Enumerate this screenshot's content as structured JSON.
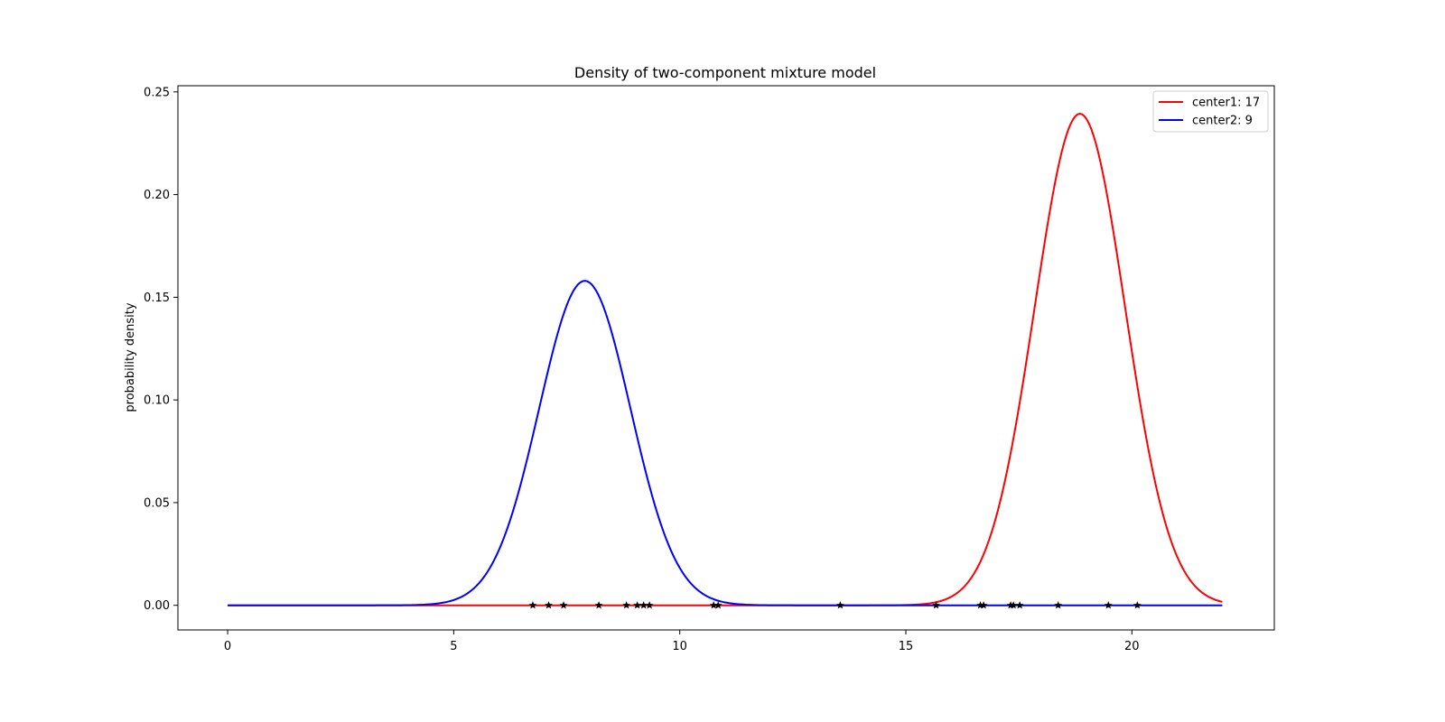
{
  "chart_data": {
    "type": "line",
    "title": "Density of two-component mixture model",
    "xlabel": "",
    "ylabel": "probability density",
    "xlim": [
      -1.1,
      23.15
    ],
    "ylim": [
      -0.012,
      0.253
    ],
    "x_ticks": [
      0,
      5,
      10,
      15,
      20
    ],
    "y_ticks": [
      0.0,
      0.05,
      0.1,
      0.15,
      0.2,
      0.25
    ],
    "x_tick_labels": [
      "0",
      "5",
      "10",
      "15",
      "20"
    ],
    "y_tick_labels": [
      "0.00",
      "0.05",
      "0.10",
      "0.15",
      "0.20",
      "0.25"
    ],
    "grid": false,
    "legend": {
      "location": "top-right"
    },
    "x_range": [
      0,
      22
    ],
    "series": [
      {
        "name": "center1: 17",
        "color": "#ff0000",
        "weight": 0.6,
        "mean": 18.85,
        "sd": 1.0,
        "curve": "gaussian"
      },
      {
        "name": "center2: 9",
        "color": "#0000ff",
        "weight": 0.4,
        "mean": 7.9,
        "sd": 1.01,
        "curve": "gaussian"
      }
    ],
    "data_points": {
      "marker": "star",
      "color": "#000000",
      "x": [
        6.75,
        7.1,
        7.43,
        8.21,
        8.82,
        9.06,
        9.2,
        9.33,
        10.75,
        10.85,
        13.55,
        15.67,
        16.65,
        16.72,
        17.32,
        17.38,
        17.52,
        18.37,
        19.48,
        20.12
      ],
      "y": [
        0,
        0,
        0,
        0,
        0,
        0,
        0,
        0,
        0,
        0,
        0,
        0,
        0,
        0,
        0,
        0,
        0,
        0,
        0,
        0
      ]
    }
  }
}
